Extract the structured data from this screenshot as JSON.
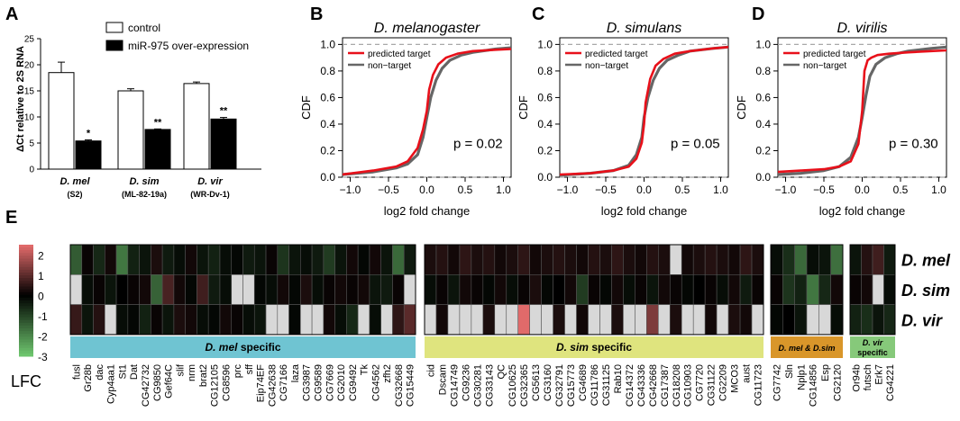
{
  "colors": {
    "red_line": "#e8101a",
    "grey_line": "#666666",
    "dash": "#a8a8a8",
    "bar_fill": "#000000",
    "cat_mel": "#6fc4d2",
    "cat_sim": "#dfe47e",
    "cat_melsim": "#d9962a",
    "cat_vir": "#86c97a",
    "lfc_pos": "#e06a6a",
    "lfc_zero": "#000000",
    "lfc_neg": "#6dc46d",
    "heat_na": "#d8d8d8"
  },
  "panel_letters": [
    "A",
    "B",
    "C",
    "D",
    "E"
  ],
  "chart_data": [
    {
      "type": "bar",
      "panel": "A",
      "ylabel": "ΔCt relative to 2S RNA",
      "ylim": [
        0,
        25
      ],
      "yticks": [
        "0",
        "5",
        "10",
        "15",
        "20",
        "25"
      ],
      "legend": [
        "control",
        "miR-975 over-expression"
      ],
      "groups": [
        {
          "species": "D. mel",
          "line": "(S2)"
        },
        {
          "species": "D. sim",
          "line": "(ML-82-19a)"
        },
        {
          "species": "D. vir",
          "line": "(WR-Dv-1)"
        }
      ],
      "series": [
        {
          "name": "control",
          "values": [
            18.5,
            15.0,
            16.4
          ],
          "errors": [
            2.0,
            0.4,
            0.3
          ]
        },
        {
          "name": "miR-975 over-expression",
          "values": [
            5.4,
            7.6,
            9.6
          ],
          "errors": [
            0.2,
            0.1,
            0.3
          ]
        }
      ],
      "significance": [
        "*",
        "**",
        "**"
      ]
    },
    {
      "type": "line",
      "panel": "B",
      "title": "D. melanogaster",
      "xlabel": "log2 fold change",
      "ylabel": "CDF",
      "xlim": [
        -1.1,
        1.1
      ],
      "ylim": [
        0,
        1.05
      ],
      "xticks": [
        "−1.0",
        "−0.5",
        "0.0",
        "0.5",
        "1.0"
      ],
      "yticks": [
        "0.0",
        "0.2",
        "0.4",
        "0.6",
        "0.8",
        "1.0"
      ],
      "legend": [
        "predicted target",
        "non−target"
      ],
      "p_value": "p = 0.02",
      "series": [
        {
          "name": "predicted target",
          "x": [
            -1.1,
            -0.7,
            -0.4,
            -0.25,
            -0.12,
            -0.05,
            0.0,
            0.03,
            0.08,
            0.15,
            0.25,
            0.4,
            0.6,
            0.9,
            1.1
          ],
          "y": [
            0.02,
            0.05,
            0.08,
            0.12,
            0.22,
            0.36,
            0.5,
            0.66,
            0.77,
            0.85,
            0.9,
            0.93,
            0.95,
            0.96,
            0.965
          ]
        },
        {
          "name": "non−target",
          "x": [
            -1.1,
            -0.7,
            -0.4,
            -0.25,
            -0.12,
            -0.05,
            0.0,
            0.05,
            0.12,
            0.2,
            0.3,
            0.45,
            0.6,
            0.9,
            1.1
          ],
          "y": [
            0.02,
            0.04,
            0.07,
            0.1,
            0.17,
            0.3,
            0.45,
            0.6,
            0.73,
            0.82,
            0.88,
            0.92,
            0.94,
            0.965,
            0.975
          ]
        }
      ]
    },
    {
      "type": "line",
      "panel": "C",
      "title": "D. simulans",
      "xlabel": "log2 fold change",
      "ylabel": "CDF",
      "xlim": [
        -1.1,
        1.1
      ],
      "ylim": [
        0,
        1.05
      ],
      "xticks": [
        "−1.0",
        "−0.5",
        "0.0",
        "0.5",
        "1.0"
      ],
      "yticks": [
        "0.0",
        "0.2",
        "0.4",
        "0.6",
        "0.8",
        "1.0"
      ],
      "legend": [
        "predicted target",
        "non−target"
      ],
      "p_value": "p = 0.05",
      "series": [
        {
          "name": "predicted target",
          "x": [
            -1.1,
            -0.7,
            -0.4,
            -0.2,
            -0.1,
            -0.03,
            0.0,
            0.02,
            0.08,
            0.15,
            0.25,
            0.4,
            0.6,
            0.9,
            1.1
          ],
          "y": [
            0.02,
            0.03,
            0.05,
            0.08,
            0.14,
            0.26,
            0.4,
            0.56,
            0.74,
            0.84,
            0.89,
            0.93,
            0.95,
            0.97,
            0.98
          ]
        },
        {
          "name": "non−target",
          "x": [
            -1.1,
            -0.7,
            -0.4,
            -0.2,
            -0.1,
            -0.03,
            0.0,
            0.05,
            0.12,
            0.2,
            0.3,
            0.45,
            0.6,
            0.9,
            1.1
          ],
          "y": [
            0.015,
            0.03,
            0.05,
            0.09,
            0.17,
            0.3,
            0.45,
            0.6,
            0.73,
            0.82,
            0.88,
            0.92,
            0.95,
            0.97,
            0.98
          ]
        }
      ]
    },
    {
      "type": "line",
      "panel": "D",
      "title": "D. virilis",
      "xlabel": "log2 fold change",
      "ylabel": "CDF",
      "xlim": [
        -1.1,
        1.1
      ],
      "ylim": [
        0,
        1.05
      ],
      "xticks": [
        "−1.0",
        "−0.5",
        "0.0",
        "0.5",
        "1.0"
      ],
      "yticks": [
        "0.0",
        "0.2",
        "0.4",
        "0.6",
        "0.8",
        "1.0"
      ],
      "legend": [
        "predicted target",
        "non−target"
      ],
      "p_value": "p = 0.30",
      "series": [
        {
          "name": "predicted target",
          "x": [
            -1.1,
            -0.8,
            -0.5,
            -0.3,
            -0.15,
            -0.05,
            0.0,
            0.03,
            0.07,
            0.12,
            0.2,
            0.35,
            0.6,
            0.9,
            1.1
          ],
          "y": [
            0.04,
            0.05,
            0.06,
            0.08,
            0.12,
            0.25,
            0.5,
            0.8,
            0.88,
            0.9,
            0.92,
            0.93,
            0.94,
            0.95,
            0.955
          ]
        },
        {
          "name": "non−target",
          "x": [
            -1.1,
            -0.8,
            -0.5,
            -0.3,
            -0.15,
            -0.05,
            0.0,
            0.05,
            0.1,
            0.18,
            0.3,
            0.45,
            0.6,
            0.9,
            1.1
          ],
          "y": [
            0.02,
            0.03,
            0.05,
            0.08,
            0.15,
            0.3,
            0.45,
            0.62,
            0.76,
            0.85,
            0.9,
            0.93,
            0.95,
            0.97,
            0.98
          ]
        }
      ]
    },
    {
      "type": "heatmap",
      "panel": "E",
      "scale_label": "LFC",
      "scale_ticks": [
        "2",
        "1",
        "0",
        "-1",
        "-2",
        "-3"
      ],
      "rows": [
        "D. mel",
        "D. sim",
        "D. vir"
      ],
      "groups": [
        {
          "label": "D. mel specific",
          "label_italic": "D. mel",
          "label_rest": " specific",
          "color_key": "cat_mel",
          "genes": [
            "fusl",
            "Gr28b",
            "dac",
            "Cyp4aa1",
            "St1",
            "Dat",
            "CG42732",
            "CG9850",
            "Gef64C",
            "slif",
            "nrm",
            "brat2",
            "CG12105",
            "CG8596",
            "prc",
            "sff",
            "Eip74EF",
            "CG42638",
            "CG7166",
            "laza",
            "CG3987",
            "CG9589",
            "CG7669",
            "CG2010",
            "CG9492",
            "Tk",
            "CG4562",
            "zfh2",
            "CG32668",
            "CG15449"
          ],
          "values": [
            [
              -1.4,
              0.1,
              -0.6,
              0.2,
              -1.8,
              -0.5,
              -0.3,
              0.3,
              -0.4,
              -0.2,
              0.2,
              -0.3,
              -0.5,
              -0.2,
              -0.1,
              -0.4,
              -0.3,
              0.1,
              -0.8,
              -0.3,
              -0.2,
              -0.4,
              -0.9,
              -0.3,
              0.2,
              -0.1,
              0.2,
              -0.3,
              -1.6,
              -0.4
            ],
            [
              null,
              -0.2,
              0.1,
              -0.3,
              0.0,
              0.1,
              0.2,
              -1.5,
              0.8,
              0.2,
              -0.1,
              0.7,
              -0.4,
              -0.2,
              null,
              null,
              -0.1,
              -0.2,
              0.2,
              -0.1,
              0.3,
              -0.2,
              0.1,
              0.2,
              0.1,
              0.2,
              -0.3,
              -0.4,
              0.1,
              null
            ],
            [
              0.6,
              -0.3,
              0.4,
              null,
              -0.2,
              -0.1,
              -0.5,
              0.1,
              -0.3,
              0.3,
              0.2,
              -0.2,
              -0.1,
              0.2,
              0.1,
              -0.2,
              -0.3,
              null,
              null,
              -0.1,
              null,
              null,
              0.2,
              -0.2,
              -0.6,
              null,
              -0.2,
              null,
              0.5,
              1.0
            ]
          ]
        },
        {
          "label": "D. sim specific",
          "label_italic": "D. sim",
          "label_rest": " specific",
          "color_key": "cat_sim",
          "genes": [
            "cid",
            "Dscam",
            "CG14749",
            "CG9236",
            "CG30281",
            "CG33143",
            "QC",
            "CG10625",
            "CG32365",
            "CG5613",
            "CG3160",
            "CG32791",
            "CG15773",
            "CG4689",
            "CG11786",
            "CG31125",
            "Rab10",
            "CG14372",
            "CG43336",
            "CG42668",
            "CG17387",
            "CG18208",
            "CG10903",
            "CG7720",
            "CG31122",
            "CG2209",
            "MCO3",
            "aust",
            "CG11723"
          ],
          "values": [
            [
              0.3,
              0.4,
              0.2,
              0.5,
              0.3,
              0.4,
              0.2,
              0.3,
              0.5,
              0.2,
              0.3,
              0.4,
              0.3,
              0.2,
              0.4,
              0.3,
              0.5,
              0.3,
              0.2,
              0.4,
              0.3,
              null,
              0.2,
              0.3,
              0.4,
              0.3,
              0.2,
              0.5,
              0.3
            ],
            [
              -0.2,
              0.1,
              -0.3,
              0.2,
              0.1,
              -0.1,
              0.2,
              -0.2,
              0.1,
              0.3,
              -0.1,
              0.0,
              0.2,
              -0.9,
              0.1,
              -0.1,
              0.2,
              -0.2,
              0.1,
              -0.3,
              0.2,
              0.1,
              -0.1,
              0.0,
              0.1,
              -0.2,
              0.2,
              -0.4,
              0.1
            ],
            [
              null,
              0.2,
              null,
              null,
              null,
              0.3,
              null,
              null,
              3.0,
              null,
              null,
              0.3,
              null,
              0.2,
              null,
              null,
              0.3,
              null,
              null,
              1.4,
              null,
              0.3,
              null,
              null,
              0.2,
              null,
              0.3,
              0.2,
              null
            ]
          ]
        },
        {
          "label": "D. mel & D.sim",
          "label_italic": "D. mel & D.sim",
          "label_rest": "",
          "color_key": "cat_melsim",
          "genes": [
            "CG7742",
            "Sln",
            "Nplp1",
            "CG14856",
            "Esp",
            "CG2120"
          ],
          "values": [
            [
              -0.2,
              -0.7,
              -1.6,
              -0.2,
              -0.3,
              -1.7
            ],
            [
              0.1,
              -0.8,
              -0.5,
              -1.8,
              -0.6,
              0.2
            ],
            [
              -0.1,
              0.0,
              -0.3,
              null,
              null,
              -0.2
            ]
          ]
        },
        {
          "label": "D. vir specific",
          "label_italic": "D. vir",
          "label_rest": " specific",
          "color_key": "cat_vir",
          "genes": [
            "Or94b",
            "futsch",
            "Erk7",
            "CG4221"
          ],
          "values": [
            [
              -0.3,
              0.4,
              0.7,
              -0.4
            ],
            [
              0.1,
              0.2,
              null,
              -0.2
            ],
            [
              -0.5,
              -0.7,
              -0.3,
              -0.6
            ]
          ]
        }
      ]
    }
  ]
}
